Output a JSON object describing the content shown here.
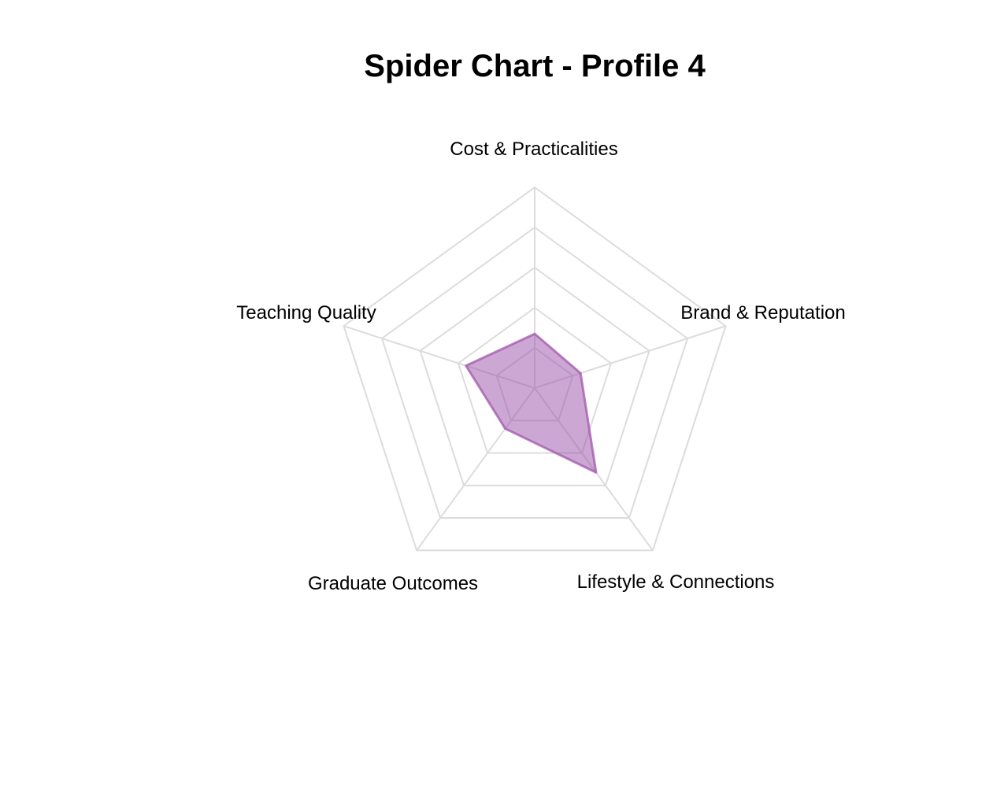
{
  "chart_data": {
    "type": "radar",
    "title": "Spider Chart - Profile 4",
    "axes": [
      "Cost & Practicalities",
      "Brand & Reputation",
      "Lifestyle & Connections",
      "Graduate Outcomes",
      "Teaching Quality"
    ],
    "series": [
      {
        "values": [
          1.35,
          1.2,
          2.6,
          1.25,
          1.8
        ],
        "color": "#9c4fa8",
        "fill_opacity": 0.5
      }
    ],
    "rlim": [
      0,
      5
    ],
    "grid_levels": 5,
    "grid_color": "#dcdcdc",
    "legend": "none"
  }
}
